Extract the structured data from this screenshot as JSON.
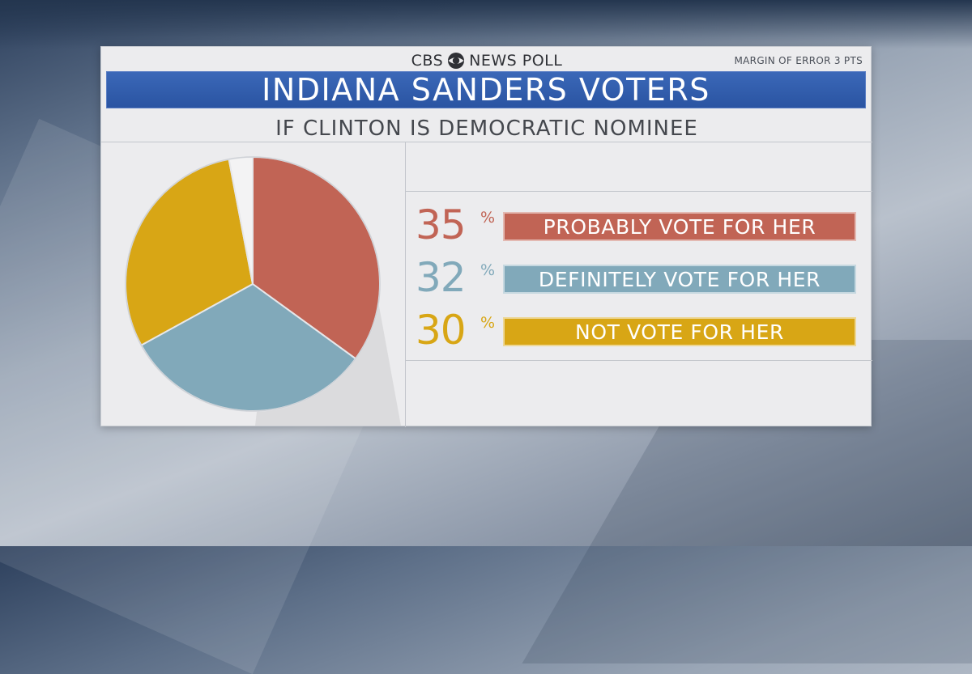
{
  "header": {
    "logo_left": "CBS",
    "logo_right": "NEWS POLL",
    "margin_of_error": "MARGIN OF ERROR 3 PTS"
  },
  "chart_data": {
    "type": "pie",
    "title": "INDIANA SANDERS VOTERS",
    "subtitle": "IF CLINTON IS DEMOCRATIC NOMINEE",
    "slices": [
      {
        "label": "PROBABLY VOTE FOR HER",
        "value": 35,
        "display": "35",
        "color": "#c16455"
      },
      {
        "label": "DEFINITELY VOTE FOR HER",
        "value": 32,
        "display": "32",
        "color": "#81a9ba"
      },
      {
        "label": "NOT VOTE FOR HER",
        "value": 30,
        "display": "30",
        "color": "#d8a615"
      },
      {
        "label": "",
        "value": 3,
        "display": "",
        "color": "#f3f3f4"
      }
    ],
    "percent_sign": "%",
    "legend_position": "right"
  }
}
